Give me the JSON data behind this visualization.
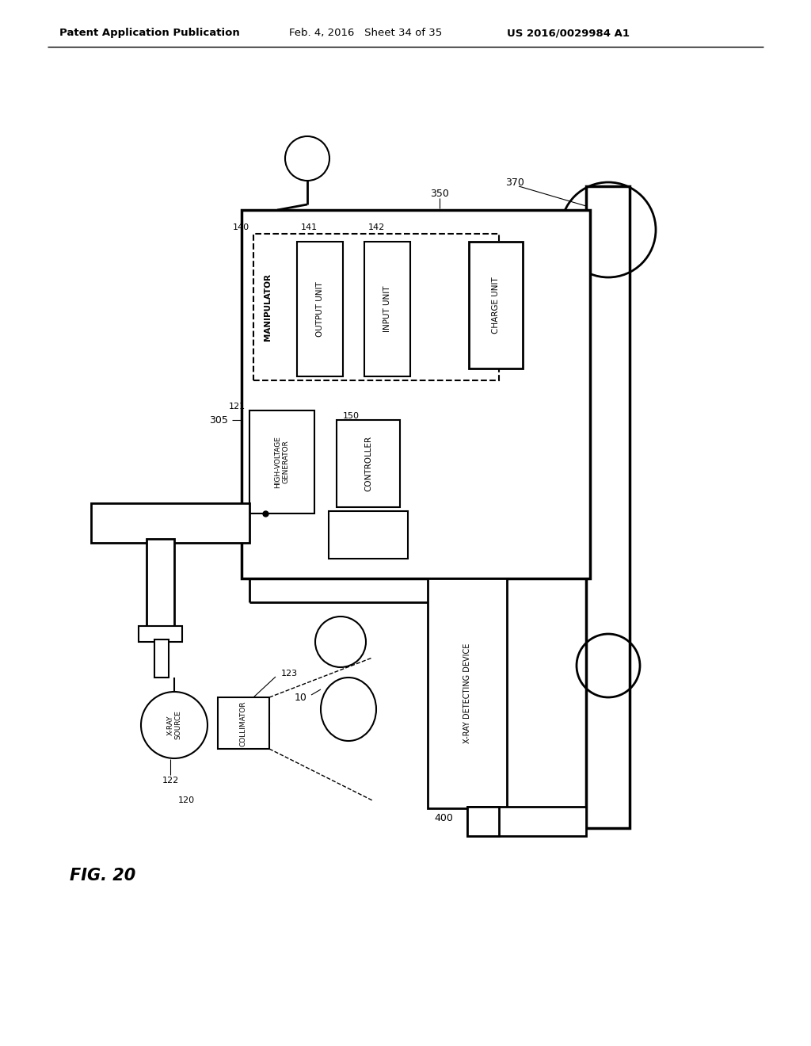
{
  "title_left": "Patent Application Publication",
  "title_mid": "Feb. 4, 2016   Sheet 34 of 35",
  "title_right": "US 2016/0029984 A1",
  "fig_label": "FIG. 20",
  "bg_color": "#ffffff",
  "line_color": "#000000",
  "text_color": "#000000"
}
